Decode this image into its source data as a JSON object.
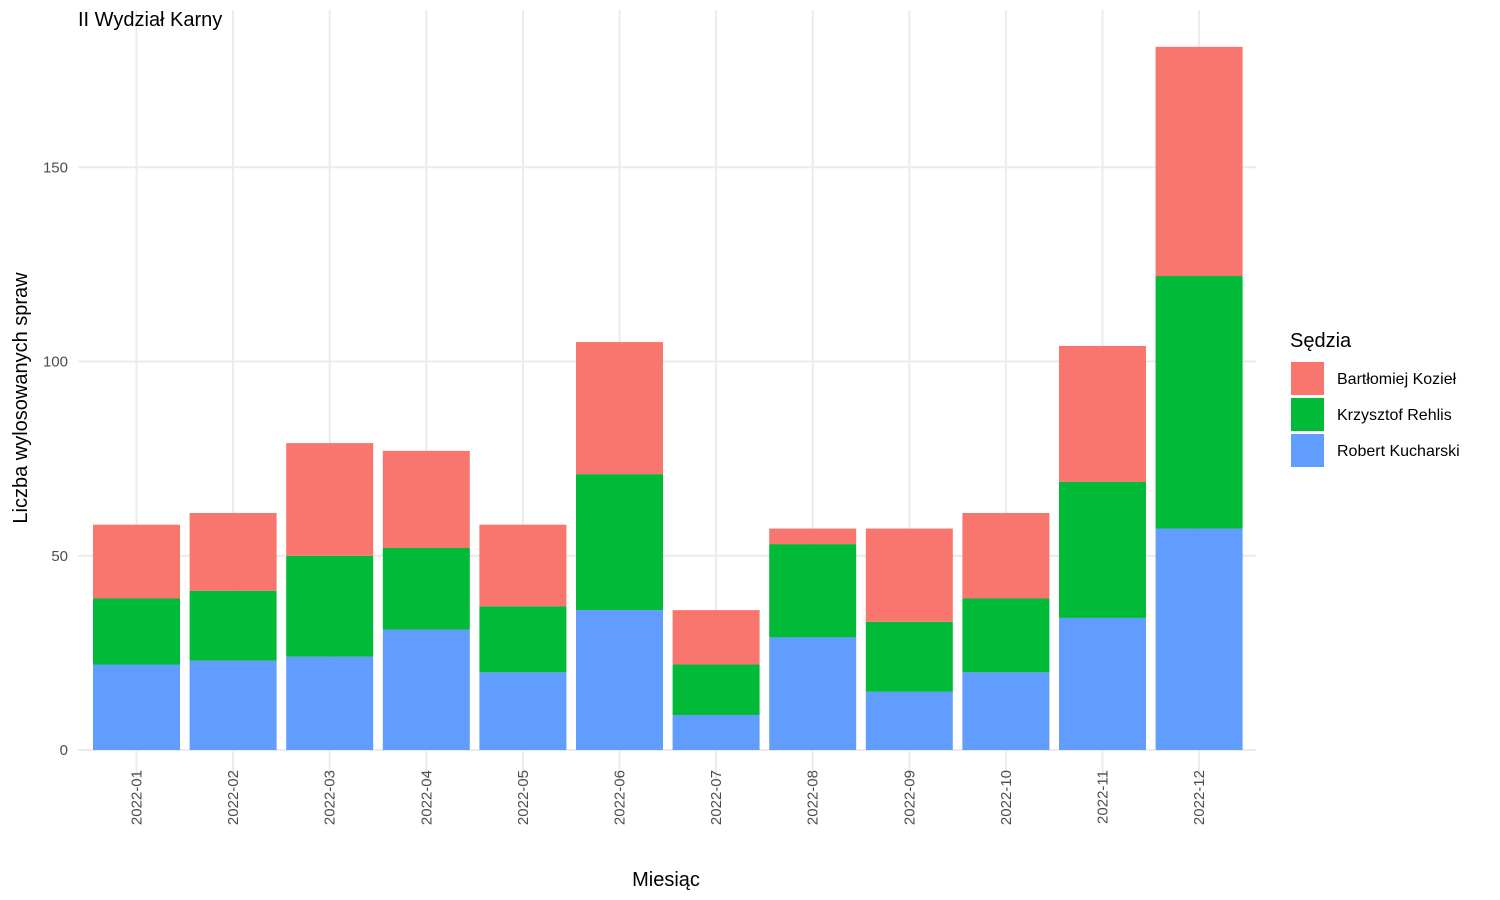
{
  "chart_data": {
    "type": "bar",
    "stacked": true,
    "title": "II Wydział Karny",
    "xlabel": "Miesiąc",
    "ylabel": "Liczba wylosowanych spraw",
    "ylim": [
      0,
      185
    ],
    "yticks": [
      0,
      50,
      100,
      150
    ],
    "grid": true,
    "legend_position": "right",
    "legend_title": "Sędzia",
    "categories": [
      "2022-01",
      "2022-02",
      "2022-03",
      "2022-04",
      "2022-05",
      "2022-06",
      "2022-07",
      "2022-08",
      "2022-09",
      "2022-10",
      "2022-11",
      "2022-12"
    ],
    "series": [
      {
        "name": "Robert Kucharski",
        "color": "#619CFF",
        "values": [
          22,
          23,
          24,
          31,
          20,
          36,
          9,
          29,
          15,
          20,
          34,
          57
        ]
      },
      {
        "name": "Krzysztof Rehlis",
        "color": "#00BA38",
        "values": [
          17,
          18,
          26,
          21,
          17,
          35,
          13,
          24,
          18,
          19,
          35,
          65
        ]
      },
      {
        "name": "Bartłomiej Kozieł",
        "color": "#F8766D",
        "values": [
          19,
          20,
          29,
          25,
          21,
          34,
          14,
          4,
          24,
          22,
          35,
          59
        ]
      }
    ],
    "legend_order": [
      "Bartłomiej Kozieł",
      "Krzysztof Rehlis",
      "Robert Kucharski"
    ]
  }
}
